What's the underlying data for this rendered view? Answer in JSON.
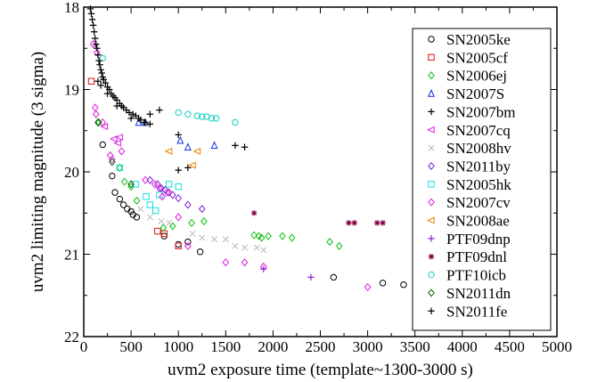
{
  "chart_data": {
    "type": "scatter",
    "xlabel": "uvm2 exposure time (template~1300-3000 s)",
    "ylabel": "uvm2 limiting magnitude (3 sigma)",
    "xlim": [
      0,
      5000
    ],
    "ylim": [
      22,
      18
    ],
    "y_inverted": true,
    "xticks": [
      "0",
      "500",
      "1000",
      "1500",
      "2000",
      "2500",
      "3000",
      "3500",
      "4000",
      "4500",
      "5000"
    ],
    "yticks": [
      "18",
      "19",
      "20",
      "21",
      "22"
    ],
    "grid": false,
    "legend_position": "right",
    "series": [
      {
        "name": "SN2005ke",
        "color": "#000000",
        "marker": "circle",
        "points": [
          [
            200,
            19.67
          ],
          [
            300,
            20.05
          ],
          [
            330,
            20.25
          ],
          [
            380,
            20.33
          ],
          [
            420,
            20.4
          ],
          [
            460,
            20.45
          ],
          [
            500,
            20.48
          ],
          [
            520,
            20.52
          ],
          [
            560,
            20.55
          ],
          [
            850,
            20.78
          ],
          [
            1000,
            20.88
          ],
          [
            1100,
            20.85
          ],
          [
            1230,
            20.97
          ],
          [
            2640,
            21.28
          ],
          [
            3160,
            21.35
          ],
          [
            3380,
            21.37
          ]
        ]
      },
      {
        "name": "SN2005cf",
        "color": "#e01010",
        "marker": "square",
        "points": [
          [
            80,
            18.9
          ],
          [
            780,
            20.72
          ],
          [
            850,
            20.75
          ],
          [
            1000,
            20.9
          ]
        ]
      },
      {
        "name": "SN2006ej",
        "color": "#10c010",
        "marker": "diamond",
        "points": [
          [
            160,
            19.4
          ],
          [
            380,
            19.95
          ],
          [
            430,
            20.12
          ],
          [
            500,
            20.18
          ],
          [
            560,
            20.35
          ],
          [
            840,
            20.68
          ],
          [
            940,
            20.66
          ],
          [
            1140,
            20.62
          ],
          [
            1270,
            20.6
          ],
          [
            1800,
            20.77
          ],
          [
            1850,
            20.78
          ],
          [
            1880,
            20.8
          ],
          [
            1950,
            20.78
          ],
          [
            2100,
            20.78
          ],
          [
            2200,
            20.8
          ],
          [
            2600,
            20.85
          ],
          [
            2700,
            20.9
          ]
        ]
      },
      {
        "name": "SN2007S",
        "color": "#1030e0",
        "marker": "triangle-up",
        "points": [
          [
            580,
            19.4
          ],
          [
            650,
            19.4
          ],
          [
            1020,
            19.62
          ],
          [
            1100,
            19.7
          ],
          [
            1380,
            19.68
          ]
        ]
      },
      {
        "name": "SN2007bm",
        "color": "#000000",
        "marker": "plus",
        "points": [
          [
            700,
            19.3
          ],
          [
            800,
            19.25
          ],
          [
            1000,
            19.55
          ],
          [
            1000,
            19.98
          ],
          [
            1100,
            19.95
          ],
          [
            1600,
            19.68
          ],
          [
            1700,
            19.7
          ]
        ]
      },
      {
        "name": "SN2007cq",
        "color": "#e020e0",
        "marker": "triangle-left",
        "points": [
          [
            220,
            19.45
          ],
          [
            320,
            19.6
          ],
          [
            360,
            19.65
          ],
          [
            380,
            19.58
          ]
        ]
      },
      {
        "name": "SN2008hv",
        "color": "#b8b8b8",
        "marker": "x",
        "points": [
          [
            600,
            20.45
          ],
          [
            700,
            20.55
          ],
          [
            820,
            20.6
          ],
          [
            900,
            20.62
          ],
          [
            1150,
            20.75
          ],
          [
            1250,
            20.8
          ],
          [
            1380,
            20.82
          ],
          [
            1500,
            20.82
          ],
          [
            1600,
            20.9
          ],
          [
            1700,
            20.92
          ],
          [
            1830,
            20.92
          ],
          [
            1900,
            20.95
          ]
        ]
      },
      {
        "name": "SN2011by",
        "color": "#8020d0",
        "marker": "diamond",
        "points": [
          [
            700,
            20.1
          ],
          [
            780,
            20.15
          ],
          [
            820,
            20.2
          ],
          [
            860,
            20.22
          ],
          [
            900,
            20.25
          ],
          [
            940,
            20.28
          ],
          [
            1000,
            20.32
          ],
          [
            1100,
            20.4
          ],
          [
            1250,
            20.45
          ]
        ]
      },
      {
        "name": "SN2005hk",
        "color": "#10e0e0",
        "marker": "square",
        "points": [
          [
            380,
            19.95
          ],
          [
            550,
            20.15
          ],
          [
            660,
            20.3
          ],
          [
            700,
            20.4
          ],
          [
            760,
            20.47
          ],
          [
            800,
            20.28
          ],
          [
            900,
            20.15
          ],
          [
            1000,
            20.18
          ]
        ]
      },
      {
        "name": "SN2007cv",
        "color": "#e020e0",
        "marker": "diamond",
        "points": [
          [
            100,
            18.45
          ],
          [
            140,
            18.55
          ],
          [
            120,
            19.22
          ],
          [
            130,
            19.3
          ],
          [
            200,
            19.4
          ],
          [
            280,
            19.8
          ],
          [
            300,
            19.85
          ],
          [
            400,
            19.75
          ],
          [
            650,
            20.1
          ],
          [
            750,
            20.15
          ],
          [
            800,
            20.2
          ],
          [
            830,
            20.3
          ],
          [
            880,
            20.25
          ],
          [
            1000,
            20.55
          ],
          [
            1100,
            20.9
          ],
          [
            1500,
            21.1
          ],
          [
            1700,
            21.1
          ],
          [
            1900,
            21.15
          ],
          [
            3000,
            21.4
          ]
        ]
      },
      {
        "name": "SN2008ae",
        "color": "#f08000",
        "marker": "triangle-left",
        "points": [
          [
            900,
            19.75
          ],
          [
            1150,
            19.92
          ],
          [
            1200,
            19.75
          ]
        ]
      },
      {
        "name": "PTF09dnp",
        "color": "#9020d0",
        "marker": "plus",
        "points": [
          [
            1900,
            21.18
          ],
          [
            2400,
            21.28
          ]
        ]
      },
      {
        "name": "PTF09dnl",
        "color": "#800040",
        "marker": "star",
        "points": [
          [
            1800,
            20.5
          ],
          [
            2800,
            20.62
          ],
          [
            2860,
            20.62
          ],
          [
            3100,
            20.62
          ],
          [
            3160,
            20.62
          ]
        ]
      },
      {
        "name": "PTF10icb",
        "color": "#10d0c0",
        "marker": "circle",
        "points": [
          [
            200,
            18.62
          ],
          [
            1000,
            19.28
          ],
          [
            1100,
            19.3
          ],
          [
            1200,
            19.32
          ],
          [
            1250,
            19.33
          ],
          [
            1300,
            19.33
          ],
          [
            1350,
            19.35
          ],
          [
            1400,
            19.35
          ],
          [
            1600,
            19.4
          ]
        ]
      },
      {
        "name": "SN2011dn",
        "color": "#006000",
        "marker": "diamond",
        "points": [
          [
            150,
            19.4
          ],
          [
            300,
            19.88
          ],
          [
            500,
            20.15
          ]
        ]
      },
      {
        "name": "SN2011fe",
        "color": "#000000",
        "marker": "plus",
        "points": [
          [
            70,
            18.02
          ],
          [
            80,
            18.08
          ],
          [
            90,
            18.15
          ],
          [
            100,
            18.22
          ],
          [
            110,
            18.3
          ],
          [
            120,
            18.38
          ],
          [
            130,
            18.45
          ],
          [
            140,
            18.5
          ],
          [
            150,
            18.58
          ],
          [
            160,
            18.65
          ],
          [
            170,
            18.7
          ],
          [
            180,
            18.76
          ],
          [
            190,
            18.8
          ],
          [
            200,
            18.85
          ],
          [
            210,
            18.88
          ],
          [
            230,
            18.92
          ],
          [
            250,
            18.97
          ],
          [
            270,
            19.0
          ],
          [
            290,
            19.05
          ],
          [
            310,
            19.08
          ],
          [
            330,
            19.1
          ],
          [
            350,
            19.13
          ],
          [
            380,
            19.17
          ],
          [
            400,
            19.2
          ],
          [
            420,
            19.22
          ],
          [
            450,
            19.25
          ],
          [
            480,
            19.28
          ],
          [
            520,
            19.3
          ],
          [
            550,
            19.32
          ],
          [
            580,
            19.35
          ],
          [
            600,
            19.37
          ],
          [
            640,
            19.4
          ],
          [
            700,
            19.42
          ],
          [
            150,
            18.9
          ],
          [
            180,
            18.95
          ],
          [
            250,
            19.05
          ],
          [
            350,
            19.2
          ],
          [
            500,
            19.35
          ],
          [
            650,
            19.4
          ]
        ]
      }
    ]
  }
}
